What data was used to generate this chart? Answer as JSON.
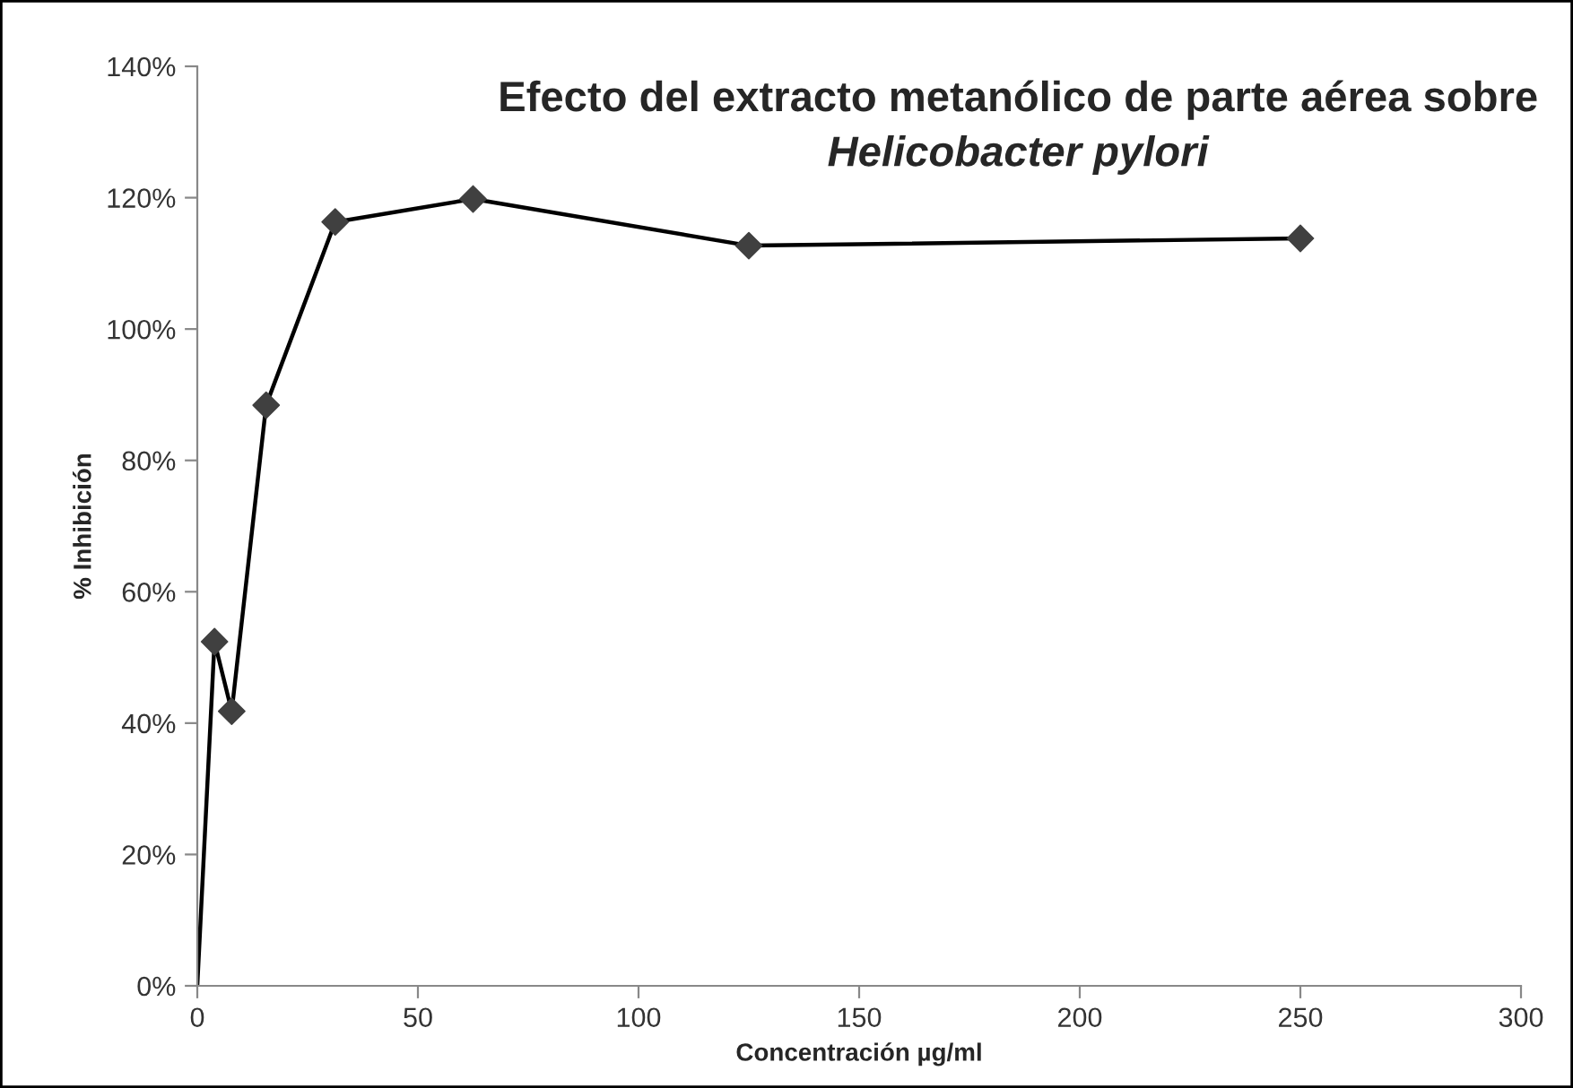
{
  "chart_data": {
    "type": "line",
    "title": "Efecto del extracto metanólico de parte aérea sobre",
    "subtitle": "Helicobacter pylori",
    "xlabel": "Concentración µg/ml",
    "ylabel": "% Inhibición",
    "series": [
      {
        "color": "#000000",
        "marker": "none",
        "x": [
          0,
          3.9,
          7.8,
          15.6,
          31.25,
          62.5,
          125,
          250
        ],
        "values": [
          0,
          52.4,
          41.8,
          88.4,
          116.3,
          119.8,
          112.7,
          113.8
        ]
      },
      {
        "type": "scatter",
        "color": "#404040",
        "marker": "diamond",
        "x": [
          3.9,
          7.8,
          15.6,
          31.25,
          62.5,
          125,
          250
        ],
        "values": [
          52.4,
          41.8,
          88.4,
          116.3,
          119.8,
          112.7,
          113.8
        ]
      }
    ],
    "xlim": [
      0,
      300
    ],
    "xticks": [
      0,
      50,
      100,
      150,
      200,
      250,
      300
    ],
    "ylim": [
      0,
      140
    ],
    "yticks": [
      {
        "value": 0,
        "label": "0%"
      },
      {
        "value": 20,
        "label": "20%"
      },
      {
        "value": 40,
        "label": "40%"
      },
      {
        "value": 60,
        "label": "60%"
      },
      {
        "value": 80,
        "label": "80%"
      },
      {
        "value": 100,
        "label": "100%"
      },
      {
        "value": 120,
        "label": "120%"
      },
      {
        "value": 140,
        "label": "140%"
      }
    ],
    "grid": false,
    "legend": false
  }
}
